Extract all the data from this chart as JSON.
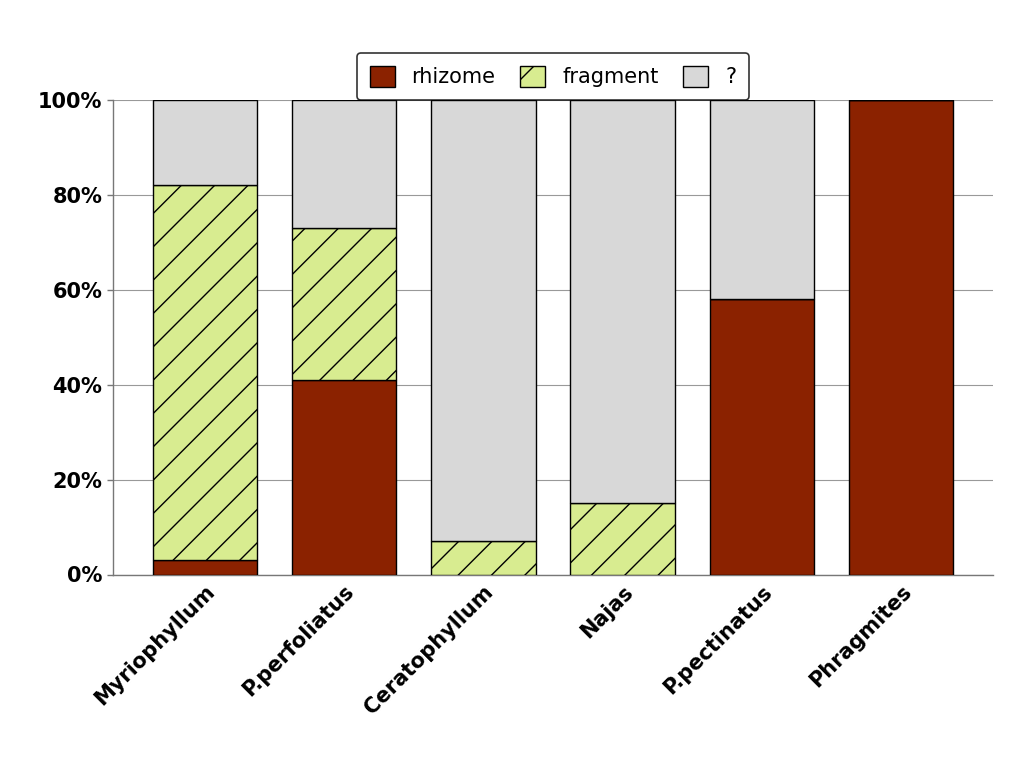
{
  "categories": [
    "Myriophyllum",
    "P.perfoliatus",
    "Ceratophyllum",
    "Najas",
    "P.pectinatus",
    "Phragmites"
  ],
  "rhizome": [
    0.03,
    0.41,
    0.0,
    0.0,
    0.58,
    1.0
  ],
  "fragment": [
    0.79,
    0.32,
    0.07,
    0.15,
    0.0,
    0.0
  ],
  "question": [
    0.18,
    0.27,
    0.93,
    0.85,
    0.42,
    0.0
  ],
  "rhizome_color": "#8B2200",
  "fragment_color": "#D8EC90",
  "question_color": "#D8D8D8",
  "bar_edge_color": "#000000",
  "background_color": "#FFFFFF",
  "grid_color": "#999999",
  "legend_labels": [
    "rhizome",
    "fragment",
    "?"
  ],
  "figsize": [
    10.24,
    7.66
  ],
  "dpi": 100,
  "bar_width": 0.75,
  "ytick_labels": [
    "0%",
    "20%",
    "40%",
    "60%",
    "80%",
    "100%"
  ],
  "ytick_values": [
    0.0,
    0.2,
    0.4,
    0.6,
    0.8,
    1.0
  ]
}
